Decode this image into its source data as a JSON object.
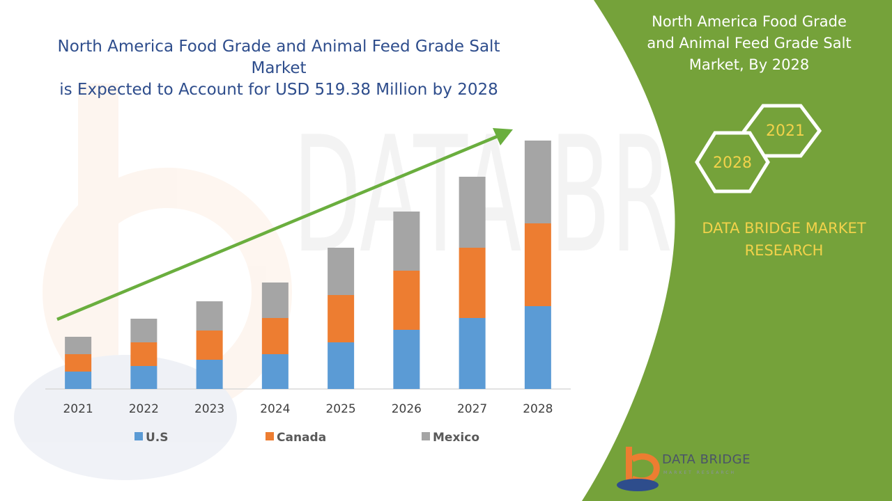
{
  "chart_title_line1": "North America Food Grade and Animal Feed Grade Salt Market",
  "chart_title_line2": "is Expected to Account for USD 519.38 Million by 2028",
  "panel": {
    "title_line1": "North America Food Grade",
    "title_line2": "and Animal Feed Grade Salt",
    "title_line3": "Market, By 2028",
    "hex_year_back": "2021",
    "hex_year_front": "2028",
    "brand_line1": "DATA BRIDGE MARKET",
    "brand_line2": "RESEARCH"
  },
  "logo": {
    "name": "DATA BRIDGE",
    "tagline": "MARKET RESEARCH"
  },
  "watermark_text": "DATA BRIDGE",
  "colors": {
    "panel_green": "#75A23A",
    "title_blue": "#2E4D8C",
    "brand_yellow": "#F2D24B",
    "arrow_green": "#6AAE3E",
    "us": "#5B9BD5",
    "canada": "#ED7D31",
    "mexico": "#A5A5A5"
  },
  "chart_data": {
    "type": "bar",
    "stacked": true,
    "title": "",
    "categories": [
      "2021",
      "2022",
      "2023",
      "2024",
      "2025",
      "2026",
      "2027",
      "2028"
    ],
    "series": [
      {
        "name": "U.S",
        "color": "#5B9BD5",
        "values": [
          25,
          33,
          42,
          50,
          67,
          85,
          102,
          119
        ]
      },
      {
        "name": "Canada",
        "color": "#ED7D31",
        "values": [
          25,
          34,
          42,
          52,
          68,
          85,
          101,
          119
        ]
      },
      {
        "name": "Mexico",
        "color": "#A5A5A5",
        "values": [
          25,
          34,
          42,
          51,
          68,
          85,
          102,
          119
        ]
      }
    ],
    "legend_position": "bottom",
    "grid": false,
    "ylim": [
      0,
      360
    ],
    "trend_arrow": true
  }
}
